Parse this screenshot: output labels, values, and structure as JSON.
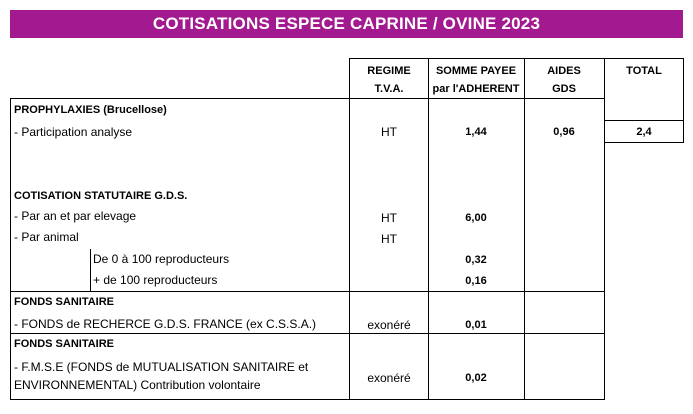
{
  "title": "COTISATIONS ESPECE CAPRINE / OVINE 2023",
  "headers": {
    "regime_l1": "REGIME",
    "regime_l2": "T.V.A.",
    "somme_l1": "SOMME PAYEE",
    "somme_l2": "par l'ADHERENT",
    "aides_l1": "AIDES",
    "aides_l2": "GDS",
    "total": "TOTAL"
  },
  "sections": {
    "prophylaxies": {
      "title": "PROPHYLAXIES (Brucellose)",
      "row_label": "- Participation analyse",
      "regime": "HT",
      "somme": "1,44",
      "aides": "0,96",
      "total": "2,4"
    },
    "statutaire": {
      "title": "COTISATION STATUTAIRE G.D.S.",
      "r1_label": "- Par an et par elevage",
      "r1_regime": "HT",
      "r1_somme": "6,00",
      "r2_label": "- Par animal",
      "r2_regime": "HT",
      "r3_label": "De 0 à 100 reproducteurs",
      "r3_somme": "0,32",
      "r4_label": "+ de 100 reproducteurs",
      "r4_somme": "0,16"
    },
    "fonds1": {
      "title": "FONDS SANITAIRE",
      "row_label": "- FONDS de RECHERCE G.D.S. FRANCE (ex C.S.S.A.)",
      "regime": "exonéré",
      "somme": "0,01"
    },
    "fonds2": {
      "title": "FONDS SANITAIRE",
      "row_label_l1": "-  F.M.S.E (FONDS de MUTUALISATION SANITAIRE et",
      "row_label_l2": "ENVIRONNEMENTAL) Contribution volontaire",
      "regime": "exonéré",
      "somme": "0,02"
    }
  }
}
